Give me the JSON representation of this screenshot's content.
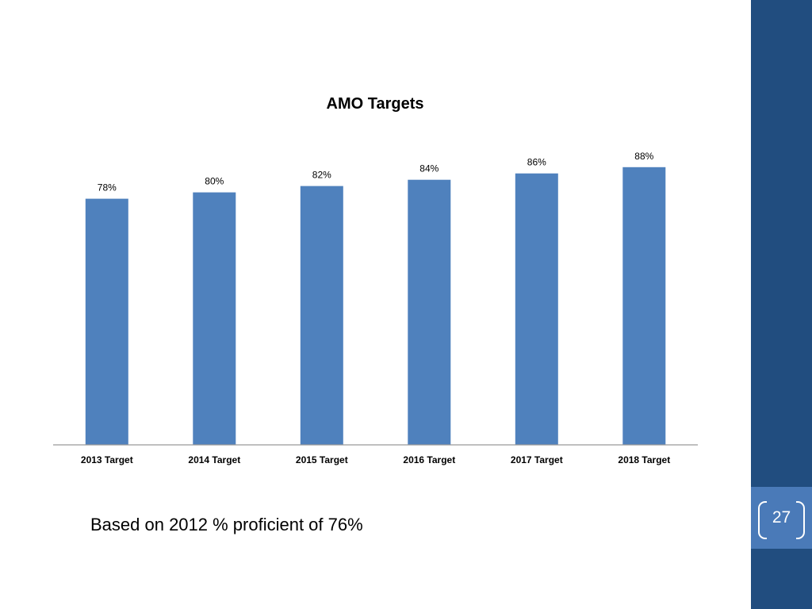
{
  "slide": {
    "note": "Based on 2012 % proficient of 76%",
    "page_number": "27",
    "band_color": "#214d7f",
    "page_box_color": "#4a7ab8"
  },
  "chart_data": {
    "type": "bar",
    "title": "AMO Targets",
    "xlabel": "",
    "ylabel": "",
    "categories": [
      "2013 Target",
      "2014 Target",
      "2015 Target",
      "2016 Target",
      "2017 Target",
      "2018 Target"
    ],
    "values": [
      78,
      80,
      82,
      84,
      86,
      88
    ],
    "data_labels": [
      "78%",
      "80%",
      "82%",
      "84%",
      "86%",
      "88%"
    ],
    "ylim": [
      0,
      100
    ],
    "bar_color": "#4f81bd",
    "grid": false,
    "legend": "none"
  }
}
